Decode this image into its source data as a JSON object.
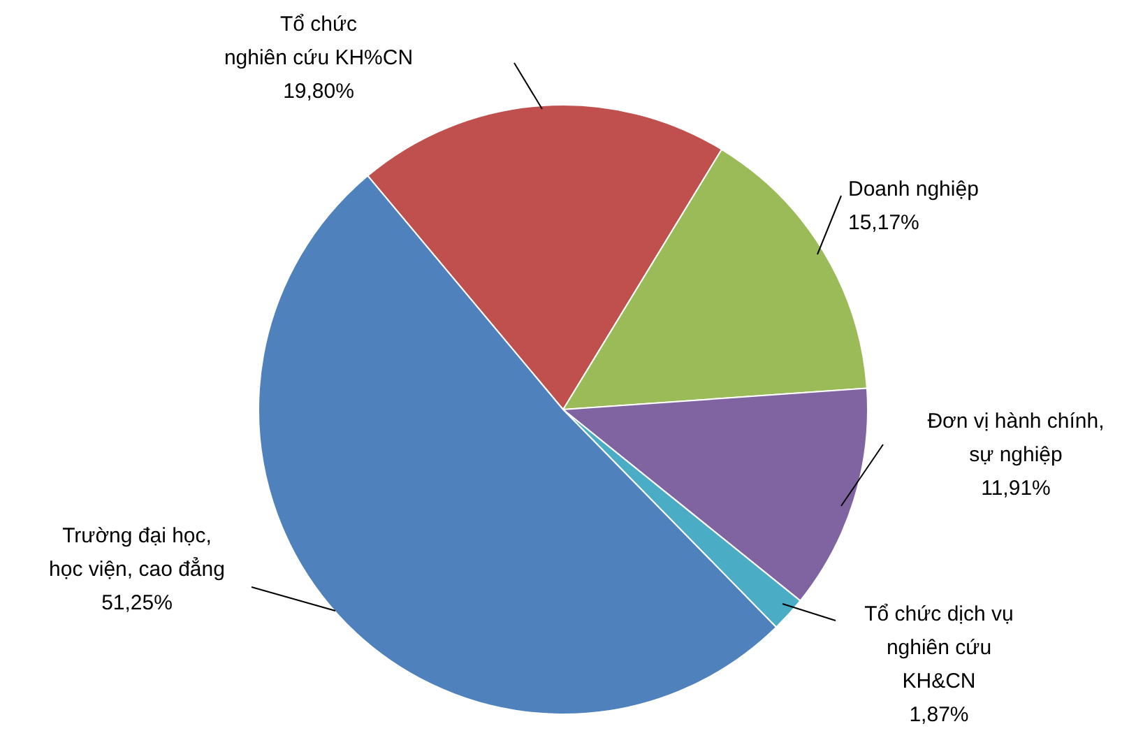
{
  "chart_data": {
    "type": "pie",
    "categories": [
      "Tổ chức\nnghiên cứu KH%CN",
      "Doanh nghiệp",
      "Đơn vị hành chính,\nsự nghiệp",
      "Tổ chức dịch vụ\nnghiên cứu\nKH&CN",
      "Trường đại học,\nhọc viện, cao đẳng"
    ],
    "values": [
      19.8,
      15.17,
      11.91,
      1.87,
      51.25
    ],
    "value_labels": [
      "19,80%",
      "15,17%",
      "11,91%",
      "1,87%",
      "51,25%"
    ],
    "colors": [
      "#c0504d",
      "#9bbb59",
      "#8064a2",
      "#4bacc6",
      "#4f81bd"
    ]
  }
}
